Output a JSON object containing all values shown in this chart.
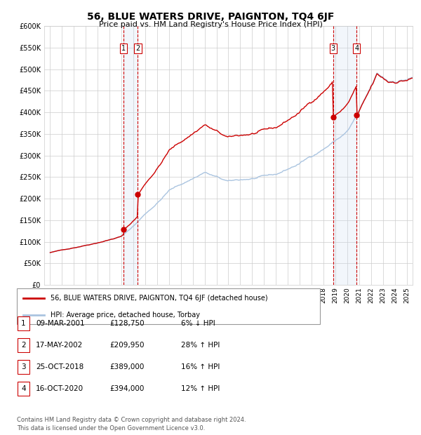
{
  "title": "56, BLUE WATERS DRIVE, PAIGNTON, TQ4 6JF",
  "subtitle": "Price paid vs. HM Land Registry's House Price Index (HPI)",
  "transactions": [
    {
      "label": "1",
      "date": "09-MAR-2001",
      "date_x": 2001.19,
      "price": 128750,
      "pct": "6%",
      "dir": "↓"
    },
    {
      "label": "2",
      "date": "17-MAY-2002",
      "date_x": 2002.38,
      "price": 209950,
      "pct": "28%",
      "dir": "↑"
    },
    {
      "label": "3",
      "date": "25-OCT-2018",
      "date_x": 2018.82,
      "price": 389000,
      "pct": "16%",
      "dir": "↑"
    },
    {
      "label": "4",
      "date": "16-OCT-2020",
      "date_x": 2020.79,
      "price": 394000,
      "pct": "12%",
      "dir": "↑"
    }
  ],
  "legend_property": "56, BLUE WATERS DRIVE, PAIGNTON, TQ4 6JF (detached house)",
  "legend_hpi": "HPI: Average price, detached house, Torbay",
  "footer1": "Contains HM Land Registry data © Crown copyright and database right 2024.",
  "footer2": "This data is licensed under the Open Government Licence v3.0.",
  "ylim": [
    0,
    600000
  ],
  "xlim_start": 1994.5,
  "xlim_end": 2025.5,
  "property_color": "#cc0000",
  "hpi_color": "#aac4e0",
  "dot_color": "#cc0000",
  "vline_color": "#cc0000",
  "shade_color": "#ccddf0",
  "grid_color": "#cccccc",
  "background_color": "#ffffff"
}
